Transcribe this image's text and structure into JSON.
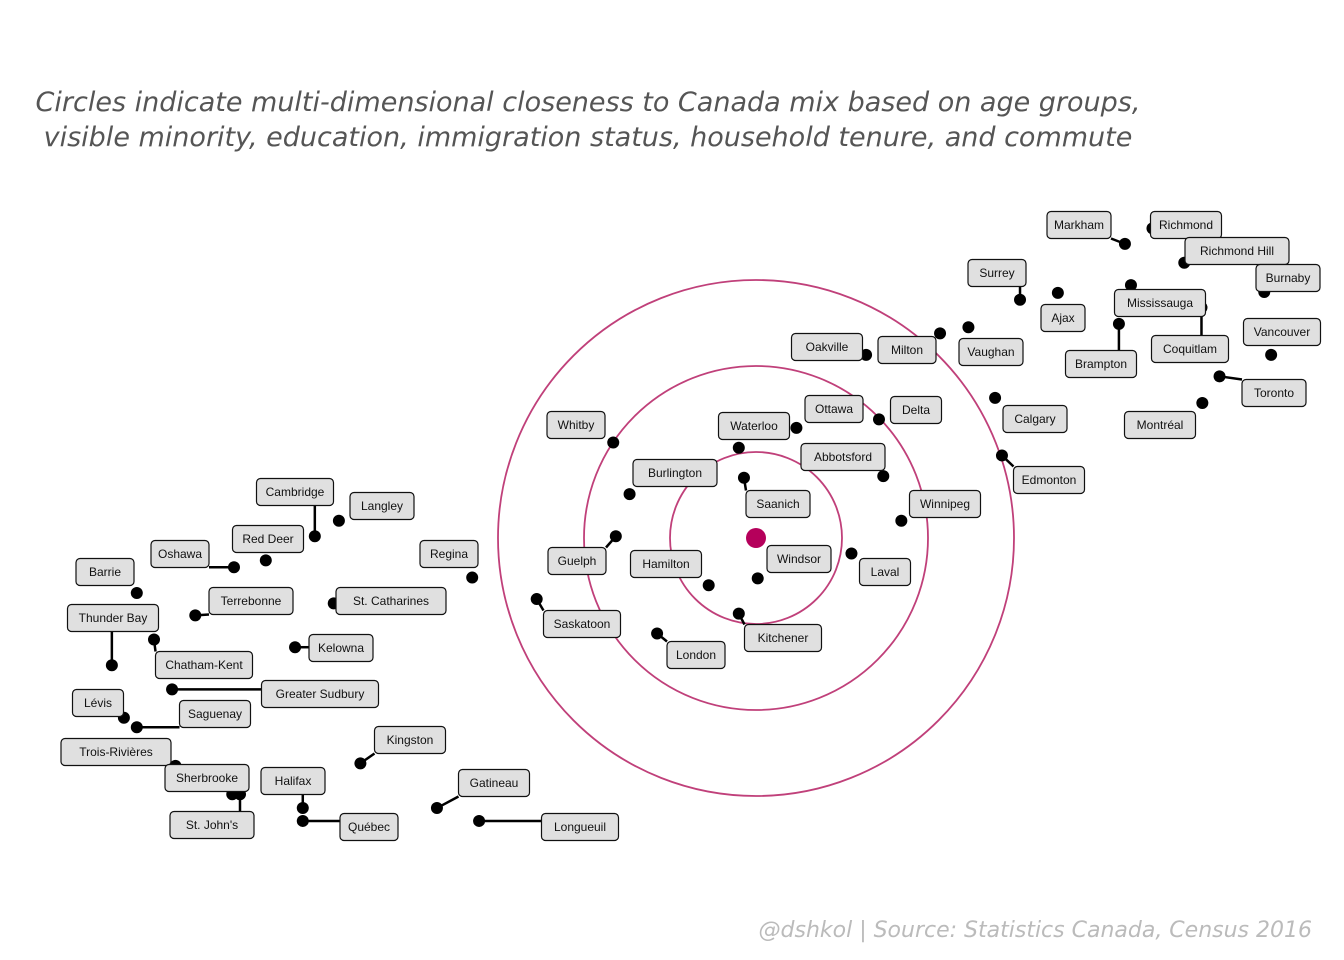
{
  "title_lines": [
    "Circles indicate multi-dimensional closeness to Canada mix based on age groups,",
    "visible minority, education, immigration status, household tenure, and commute"
  ],
  "caption": "@dshkol | Source: Statistics Canada, Census 2016",
  "colors": {
    "ring": "#c0407a",
    "center": "#b5005b",
    "point": "#000000",
    "label_fill": "#e0e0e0",
    "title": "#555555",
    "caption": "#bbbbbb"
  },
  "chart_data": {
    "type": "scatter",
    "title": "Circles indicate multi-dimensional closeness to Canada mix based on age groups, visible minority, education, immigration status, household tenure, and commute",
    "center": {
      "name": "",
      "x": 0,
      "y": 0
    },
    "rings": [
      1,
      2,
      3
    ],
    "grid": false,
    "axes_visible": false,
    "points": [
      {
        "name": "Saanich",
        "x": -0.14,
        "y": 0.7
      },
      {
        "name": "Windsor",
        "x": 0.02,
        "y": -0.47
      },
      {
        "name": "Hamilton",
        "x": -0.55,
        "y": -0.55
      },
      {
        "name": "Kitchener",
        "x": -0.2,
        "y": -0.88
      },
      {
        "name": "Waterloo",
        "x": -0.2,
        "y": 1.05
      },
      {
        "name": "Ottawa",
        "x": 0.47,
        "y": 1.28
      },
      {
        "name": "Abbotsford",
        "x": 1.48,
        "y": 0.72
      },
      {
        "name": "Delta",
        "x": 1.43,
        "y": 1.38
      },
      {
        "name": "Laval",
        "x": 1.11,
        "y": -0.18
      },
      {
        "name": "Winnipeg",
        "x": 1.69,
        "y": 0.2
      },
      {
        "name": "Burlington",
        "x": -1.47,
        "y": 0.51
      },
      {
        "name": "Guelph",
        "x": -1.63,
        "y": 0.02
      },
      {
        "name": "London",
        "x": -1.15,
        "y": -1.11
      },
      {
        "name": "Whitby",
        "x": -1.66,
        "y": 1.11
      },
      {
        "name": "Saskatoon",
        "x": -2.55,
        "y": -0.71
      },
      {
        "name": "Regina",
        "x": -3.3,
        "y": -0.46
      },
      {
        "name": "Oakville",
        "x": 1.28,
        "y": 2.13
      },
      {
        "name": "Milton",
        "x": 2.14,
        "y": 2.38
      },
      {
        "name": "Vaughan",
        "x": 2.47,
        "y": 2.45
      },
      {
        "name": "Calgary",
        "x": 2.78,
        "y": 1.63
      },
      {
        "name": "Edmonton",
        "x": 2.86,
        "y": 0.96
      },
      {
        "name": "Surrey",
        "x": 3.07,
        "y": 2.77
      },
      {
        "name": "Ajax",
        "x": 3.51,
        "y": 2.85
      },
      {
        "name": "Markham",
        "x": 4.29,
        "y": 3.42
      },
      {
        "name": "Richmond",
        "x": 4.61,
        "y": 3.6
      },
      {
        "name": "Richmond Hill",
        "x": 4.98,
        "y": 3.2
      },
      {
        "name": "Burnaby",
        "x": 5.91,
        "y": 2.86
      },
      {
        "name": "Mississauga",
        "x": 4.36,
        "y": 2.94
      },
      {
        "name": "Brampton",
        "x": 4.22,
        "y": 2.49
      },
      {
        "name": "Coquitlam",
        "x": 5.18,
        "y": 2.68
      },
      {
        "name": "Vancouver",
        "x": 5.99,
        "y": 2.13
      },
      {
        "name": "Toronto",
        "x": 5.39,
        "y": 1.88
      },
      {
        "name": "Montréal",
        "x": 5.19,
        "y": 1.57
      },
      {
        "name": "Cambridge",
        "x": -5.13,
        "y": 0.02
      },
      {
        "name": "Langley",
        "x": -4.85,
        "y": 0.2
      },
      {
        "name": "Red Deer",
        "x": -5.7,
        "y": -0.26
      },
      {
        "name": "Oshawa",
        "x": -6.07,
        "y": -0.34
      },
      {
        "name": "Barrie",
        "x": -7.2,
        "y": -0.64
      },
      {
        "name": "Thunder Bay",
        "x": -7.49,
        "y": -1.48
      },
      {
        "name": "Terrebonne",
        "x": -6.52,
        "y": -0.9
      },
      {
        "name": "St. Catharines",
        "x": -4.91,
        "y": -0.76
      },
      {
        "name": "Kelowna",
        "x": -5.36,
        "y": -1.27
      },
      {
        "name": "Chatham-Kent",
        "x": -7.0,
        "y": -1.18
      },
      {
        "name": "Greater Sudbury",
        "x": -6.79,
        "y": -1.76
      },
      {
        "name": "Lévis",
        "x": -7.35,
        "y": -2.09
      },
      {
        "name": "Saguenay",
        "x": -7.2,
        "y": -2.2
      },
      {
        "name": "Trois-Rivières",
        "x": -6.75,
        "y": -2.65
      },
      {
        "name": "Sherbrooke",
        "x": -6.09,
        "y": -2.98
      },
      {
        "name": "St. John's",
        "x": -6.0,
        "y": -2.98
      },
      {
        "name": "Halifax",
        "x": -5.27,
        "y": -3.14
      },
      {
        "name": "Québec",
        "x": -5.27,
        "y": -3.29
      },
      {
        "name": "Kingston",
        "x": -4.6,
        "y": -2.62
      },
      {
        "name": "Gatineau",
        "x": -3.71,
        "y": -3.14
      },
      {
        "name": "Longueuil",
        "x": -3.22,
        "y": -3.29
      }
    ]
  }
}
